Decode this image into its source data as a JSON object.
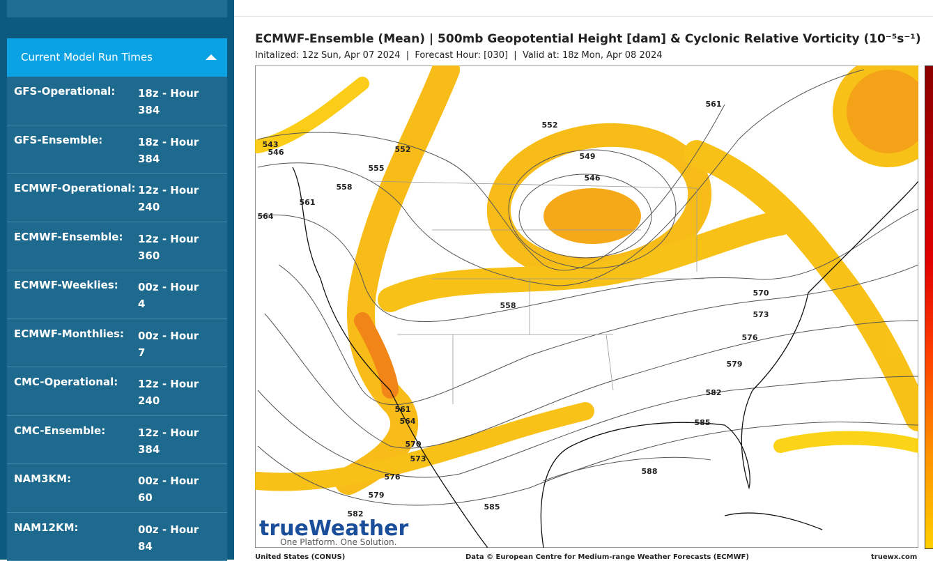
{
  "sidebar": {
    "header": "Current Model Run Times",
    "rows": [
      {
        "model": "GFS-Operational:",
        "run": "18z - Hour 384"
      },
      {
        "model": "GFS-Ensemble:",
        "run": "18z - Hour 384"
      },
      {
        "model": "ECMWF-Operational:",
        "run": "12z - Hour 240"
      },
      {
        "model": "ECMWF-Ensemble:",
        "run": "12z - Hour 360"
      },
      {
        "model": "ECMWF-Weeklies:",
        "run": "00z - Hour 4"
      },
      {
        "model": "ECMWF-Monthlies:",
        "run": "00z - Hour 7"
      },
      {
        "model": "CMC-Operational:",
        "run": "12z - Hour 240"
      },
      {
        "model": "CMC-Ensemble:",
        "run": "12z - Hour 384"
      },
      {
        "model": "NAM3KM:",
        "run": "00z - Hour 60"
      },
      {
        "model": "NAM12KM:",
        "run": "00z - Hour 84"
      }
    ]
  },
  "map": {
    "title": "ECMWF-Ensemble (Mean) | 500mb Geopotential Height [dam] & Cyclonic Relative Vorticity (10⁻⁵s⁻¹)",
    "subtitle": "Initalized: 12z Sun, Apr 07 2024  |  Forecast Hour: [030]  |  Valid at: 18z Mon, Apr 08 2024",
    "contour_labels": [
      "543",
      "546",
      "552",
      "555",
      "558",
      "561",
      "564",
      "552",
      "549",
      "546",
      "561",
      "558",
      "570",
      "573",
      "576",
      "579",
      "582",
      "585",
      "588",
      "561",
      "564",
      "570",
      "573",
      "576",
      "579",
      "582",
      "585"
    ],
    "logo": {
      "brand": "trueWeather",
      "tagline": "One Platform. One Solution."
    },
    "footer": {
      "left": "United States (CONUS)",
      "center": "Data © European Centre for Medium-range Weather Forecasts (ECMWF)",
      "right": "truewx.com"
    }
  }
}
